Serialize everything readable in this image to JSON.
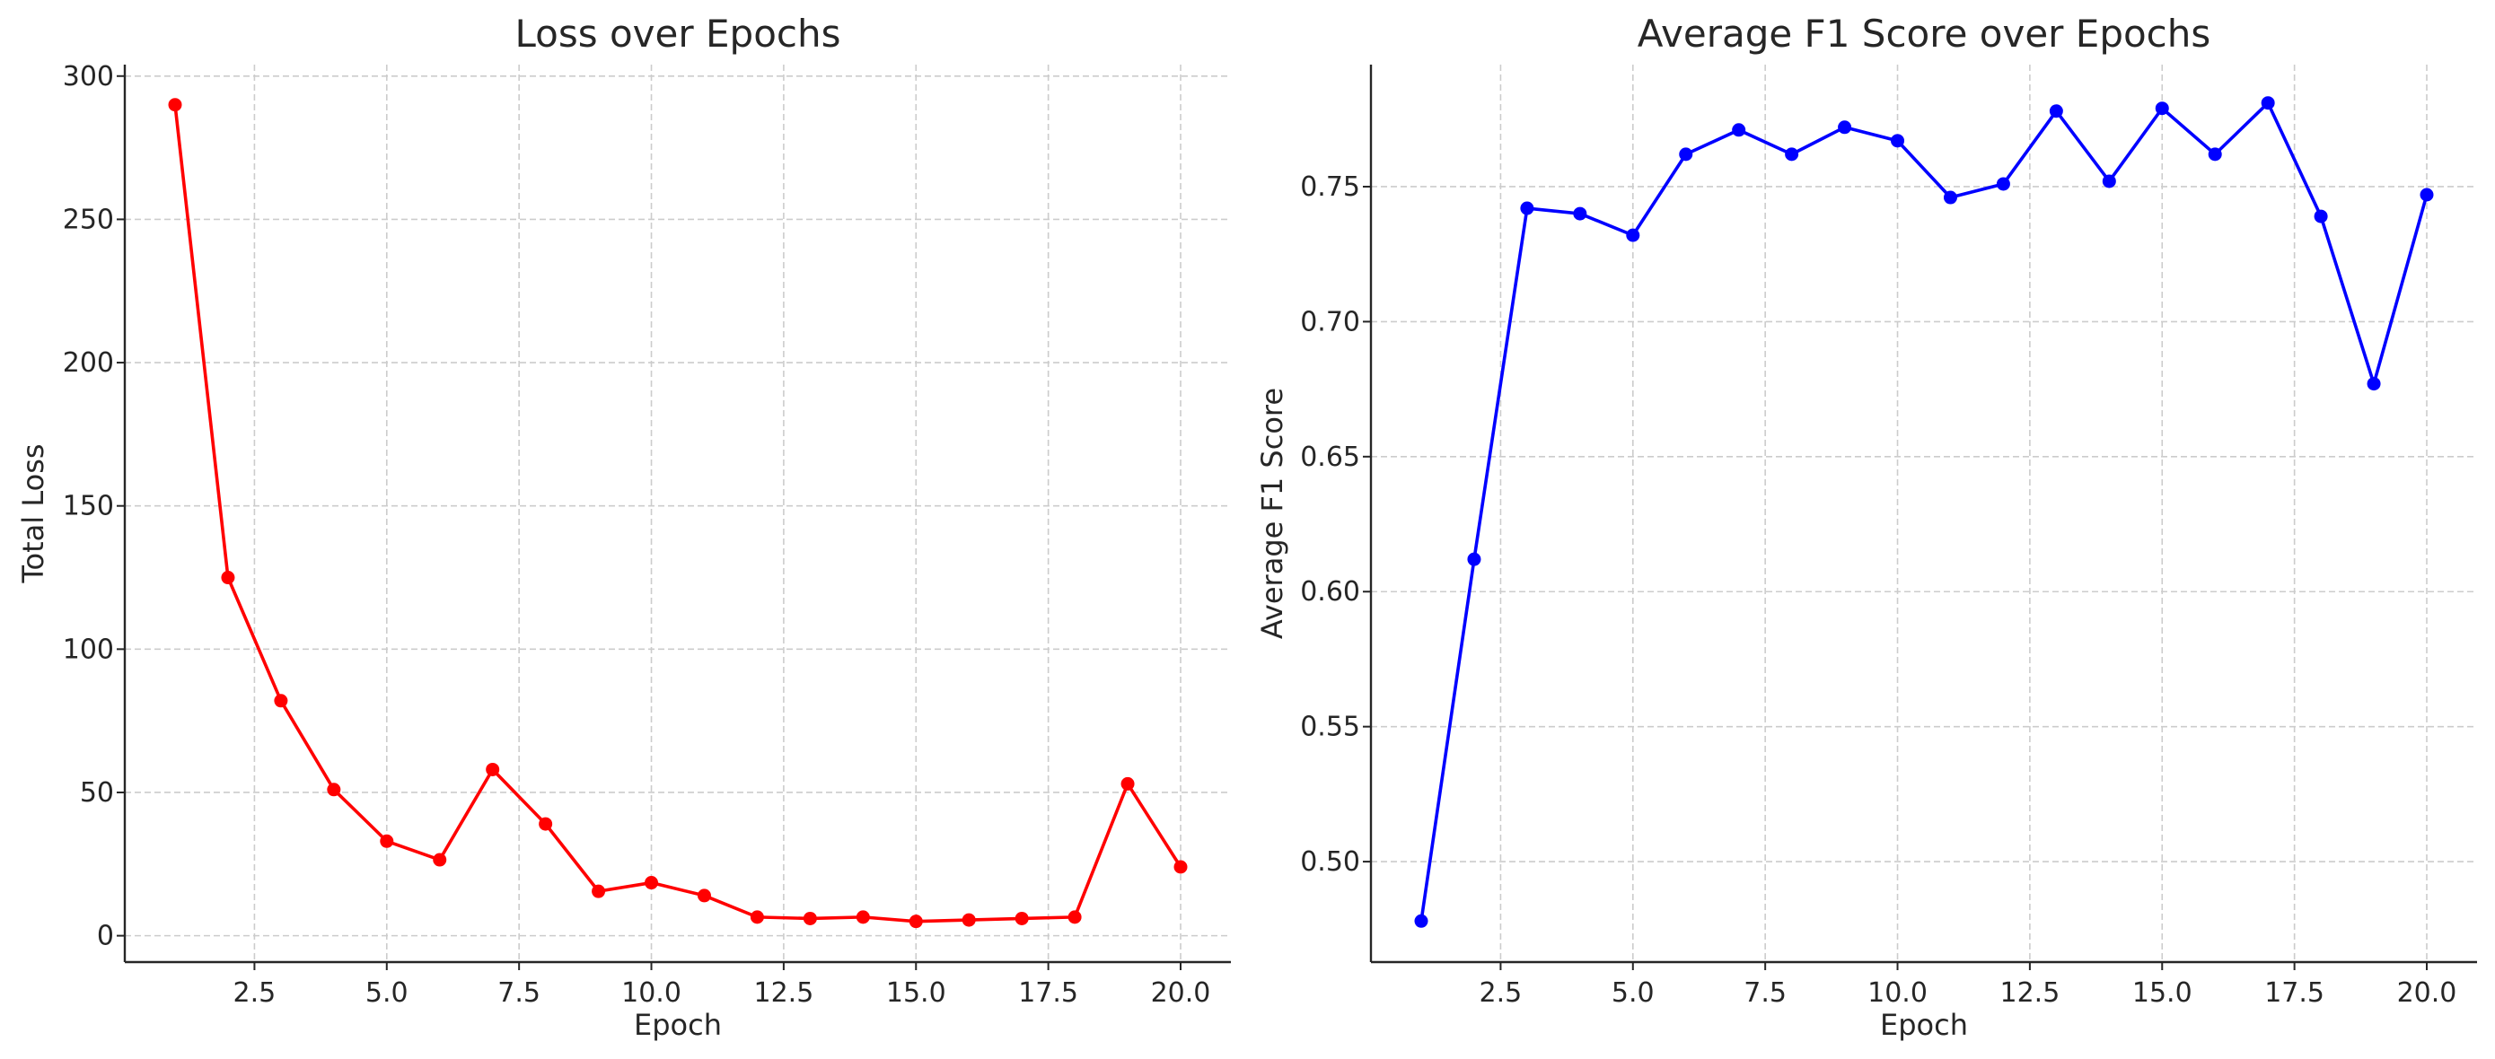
{
  "chart_data": [
    {
      "type": "line",
      "title": "Loss over Epochs",
      "xlabel": "Epoch",
      "ylabel": "Total Loss",
      "xlim": [
        0.05,
        20.95
      ],
      "ylim": [
        -9.2,
        304
      ],
      "xticks": [
        2.5,
        5.0,
        7.5,
        10.0,
        12.5,
        15.0,
        17.5,
        20.0
      ],
      "xtick_labels": [
        "2.5",
        "5.0",
        "7.5",
        "10.0",
        "12.5",
        "15.0",
        "17.5",
        "20.0"
      ],
      "yticks": [
        0,
        50,
        100,
        150,
        200,
        250,
        300
      ],
      "ytick_labels": [
        "0",
        "50",
        "100",
        "150",
        "200",
        "250",
        "300"
      ],
      "grid": true,
      "color": "#ff0000",
      "x": [
        1,
        2,
        3,
        4,
        5,
        6,
        7,
        8,
        9,
        10,
        11,
        12,
        13,
        14,
        15,
        16,
        17,
        18,
        19,
        20
      ],
      "values": [
        290,
        125,
        82,
        51,
        33,
        26.5,
        58,
        39,
        15.5,
        18.5,
        14,
        6.5,
        6,
        6.5,
        5,
        5.5,
        6,
        6.5,
        53,
        24
      ]
    },
    {
      "type": "line",
      "title": "Average F1 Score over Epochs",
      "xlabel": "Epoch",
      "ylabel": "Average F1 Score",
      "xlim": [
        0.05,
        20.95
      ],
      "ylim": [
        0.4628,
        0.7952
      ],
      "xticks": [
        2.5,
        5.0,
        7.5,
        10.0,
        12.5,
        15.0,
        17.5,
        20.0
      ],
      "xtick_labels": [
        "2.5",
        "5.0",
        "7.5",
        "10.0",
        "12.5",
        "15.0",
        "17.5",
        "20.0"
      ],
      "yticks": [
        0.5,
        0.55,
        0.6,
        0.65,
        0.7,
        0.75
      ],
      "ytick_labels": [
        "0.50",
        "0.55",
        "0.60",
        "0.65",
        "0.70",
        "0.75"
      ],
      "grid": true,
      "color": "#0000ff",
      "x": [
        1,
        2,
        3,
        4,
        5,
        6,
        7,
        8,
        9,
        10,
        11,
        12,
        13,
        14,
        15,
        16,
        17,
        18,
        19,
        20
      ],
      "values": [
        0.478,
        0.612,
        0.742,
        0.74,
        0.732,
        0.762,
        0.771,
        0.762,
        0.772,
        0.767,
        0.746,
        0.751,
        0.778,
        0.752,
        0.779,
        0.762,
        0.781,
        0.739,
        0.677,
        0.747
      ]
    }
  ]
}
